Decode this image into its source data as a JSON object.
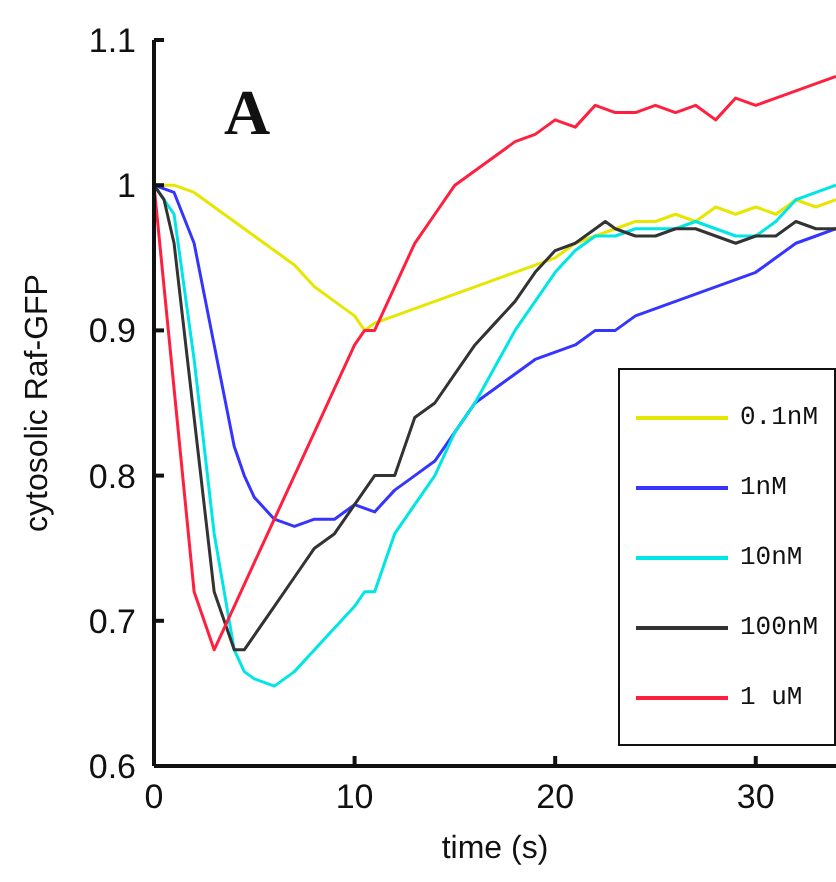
{
  "chart_data": {
    "type": "line",
    "xlabel": "time (s)",
    "ylabel": "cytosolic Raf-GFP",
    "annotations": [
      "A"
    ],
    "xlim": [
      0,
      34
    ],
    "ylim": [
      0.6,
      1.1
    ],
    "xticks": [
      0,
      10,
      20,
      30
    ],
    "yticks": [
      0.6,
      0.7,
      0.8,
      0.9,
      1,
      1.1
    ],
    "grid": false,
    "legend": "bottom right",
    "marker": "none",
    "line_style": "solid",
    "series": [
      {
        "name": "0.1nM",
        "color": "#e6e600",
        "x": [
          0,
          1,
          2,
          3,
          4,
          5,
          6,
          7,
          8,
          9,
          10,
          10.5,
          11,
          12,
          13,
          14,
          15,
          16,
          17,
          18,
          19,
          20,
          21,
          22,
          23,
          24,
          25,
          26,
          27,
          28,
          29,
          30,
          31,
          32,
          33,
          34
        ],
        "values": [
          1,
          1,
          0.995,
          0.985,
          0.975,
          0.965,
          0.955,
          0.945,
          0.93,
          0.92,
          0.91,
          0.9,
          0.905,
          0.91,
          0.915,
          0.92,
          0.925,
          0.93,
          0.935,
          0.94,
          0.945,
          0.95,
          0.96,
          0.965,
          0.97,
          0.975,
          0.975,
          0.98,
          0.975,
          0.985,
          0.98,
          0.985,
          0.98,
          0.99,
          0.985,
          0.99
        ]
      },
      {
        "name": "1nM",
        "color": "#3535ff",
        "x": [
          0,
          1,
          2,
          3,
          4,
          4.5,
          5,
          6,
          7,
          8,
          9,
          10,
          11,
          12,
          13,
          14,
          15,
          16,
          17,
          18,
          19,
          20,
          21,
          22,
          23,
          24,
          25,
          26,
          27,
          28,
          29,
          30,
          31,
          32,
          33,
          34
        ],
        "values": [
          1,
          0.995,
          0.96,
          0.89,
          0.82,
          0.8,
          0.785,
          0.77,
          0.765,
          0.77,
          0.77,
          0.78,
          0.775,
          0.79,
          0.8,
          0.81,
          0.83,
          0.85,
          0.86,
          0.87,
          0.88,
          0.885,
          0.89,
          0.9,
          0.9,
          0.91,
          0.915,
          0.92,
          0.925,
          0.93,
          0.935,
          0.94,
          0.95,
          0.96,
          0.965,
          0.97
        ]
      },
      {
        "name": "10nM",
        "color": "#00e5e5",
        "x": [
          0,
          1,
          2,
          3,
          4,
          4.5,
          5,
          6,
          7,
          8,
          9,
          10,
          10.5,
          11,
          12,
          13,
          14,
          15,
          16,
          17,
          18,
          19,
          20,
          21,
          22,
          23,
          24,
          25,
          26,
          27,
          28,
          29,
          30,
          31,
          32,
          33,
          34
        ],
        "values": [
          1,
          0.98,
          0.88,
          0.76,
          0.68,
          0.665,
          0.66,
          0.655,
          0.665,
          0.68,
          0.695,
          0.71,
          0.72,
          0.72,
          0.76,
          0.78,
          0.8,
          0.83,
          0.85,
          0.875,
          0.9,
          0.92,
          0.94,
          0.955,
          0.965,
          0.965,
          0.97,
          0.97,
          0.97,
          0.975,
          0.97,
          0.965,
          0.965,
          0.975,
          0.99,
          0.995,
          1
        ]
      },
      {
        "name": "100nM",
        "color": "#333333",
        "x": [
          0,
          0.5,
          1,
          2,
          3,
          4,
          4.5,
          5,
          6,
          7,
          8,
          9,
          10,
          11,
          12,
          13,
          14,
          15,
          16,
          17,
          18,
          19,
          20,
          21,
          22,
          22.5,
          23,
          24,
          25,
          26,
          27,
          28,
          29,
          30,
          31,
          32,
          33,
          34
        ],
        "values": [
          1,
          0.99,
          0.96,
          0.84,
          0.72,
          0.68,
          0.68,
          0.69,
          0.71,
          0.73,
          0.75,
          0.76,
          0.78,
          0.8,
          0.8,
          0.84,
          0.85,
          0.87,
          0.89,
          0.905,
          0.92,
          0.94,
          0.955,
          0.96,
          0.97,
          0.975,
          0.97,
          0.965,
          0.965,
          0.97,
          0.97,
          0.965,
          0.96,
          0.965,
          0.965,
          0.975,
          0.97,
          0.97
        ]
      },
      {
        "name": "1 uM",
        "color": "#ff2040",
        "x": [
          0,
          1,
          2,
          3,
          4,
          5,
          6,
          7,
          8,
          9,
          10,
          10.5,
          11,
          12,
          13,
          14,
          15,
          16,
          17,
          18,
          19,
          20,
          21,
          22,
          23,
          24,
          25,
          26,
          27,
          28,
          29,
          30,
          31,
          32,
          33,
          34
        ],
        "values": [
          1,
          0.86,
          0.72,
          0.68,
          0.71,
          0.74,
          0.77,
          0.8,
          0.83,
          0.86,
          0.89,
          0.9,
          0.9,
          0.93,
          0.96,
          0.98,
          1,
          1.01,
          1.02,
          1.03,
          1.035,
          1.045,
          1.04,
          1.055,
          1.05,
          1.05,
          1.055,
          1.05,
          1.055,
          1.045,
          1.06,
          1.055,
          1.06,
          1.065,
          1.07,
          1.075
        ]
      }
    ]
  }
}
